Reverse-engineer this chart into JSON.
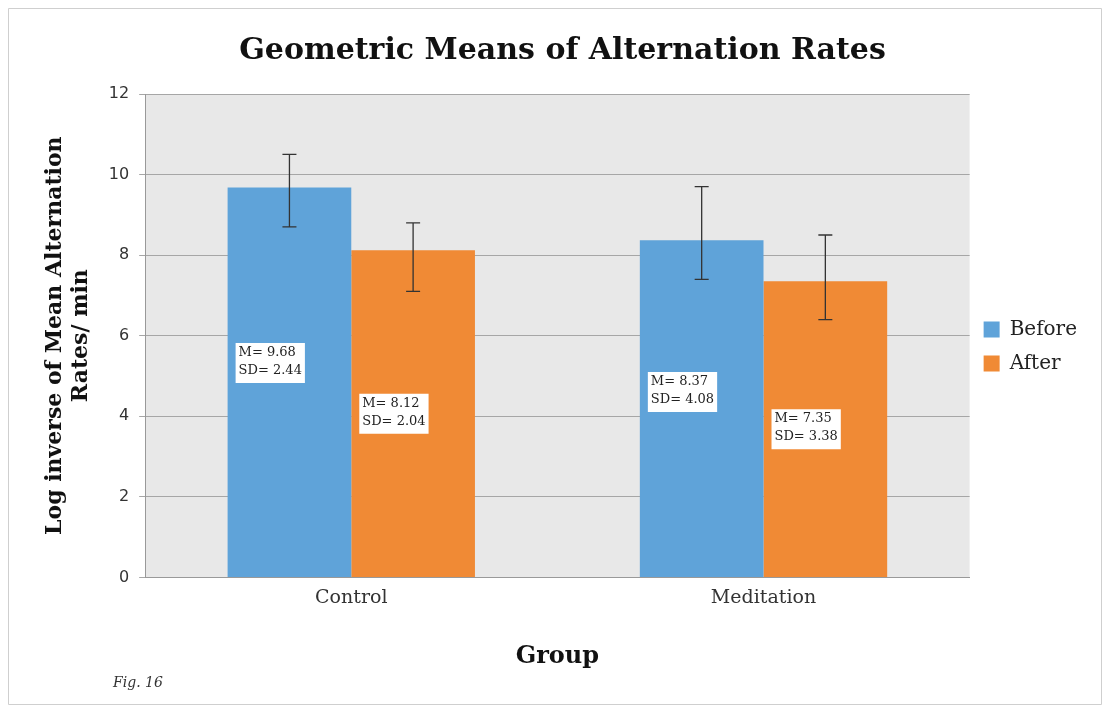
{
  "chart_data": {
    "type": "bar",
    "title": "Geometric Means of Alternation Rates",
    "xlabel": "Group",
    "ylabel": "Log inverse of Mean Alternation Rates/ min",
    "categories": [
      "Control",
      "Meditation"
    ],
    "series": [
      {
        "name": "Before",
        "color": "#5fa3d9",
        "values": [
          9.68,
          8.37
        ],
        "errors": [
          [
            8.7,
            10.5
          ],
          [
            7.4,
            9.7
          ]
        ],
        "value_labels": [
          "M= 9.68\nSD= 2.44",
          "M= 8.37\nSD= 4.08"
        ]
      },
      {
        "name": "After",
        "color": "#f08a35",
        "values": [
          8.12,
          7.35
        ],
        "errors": [
          [
            7.1,
            8.8
          ],
          [
            6.4,
            8.5
          ]
        ],
        "value_labels": [
          "M= 8.12\nSD= 2.04",
          "M= 7.35\nSD= 3.38"
        ]
      }
    ],
    "ylim": [
      0,
      12
    ],
    "yticks": [
      0,
      2,
      4,
      6,
      8,
      10,
      12
    ],
    "grid": "y",
    "legend": "right",
    "annotations": [
      "Fig. 16"
    ]
  }
}
